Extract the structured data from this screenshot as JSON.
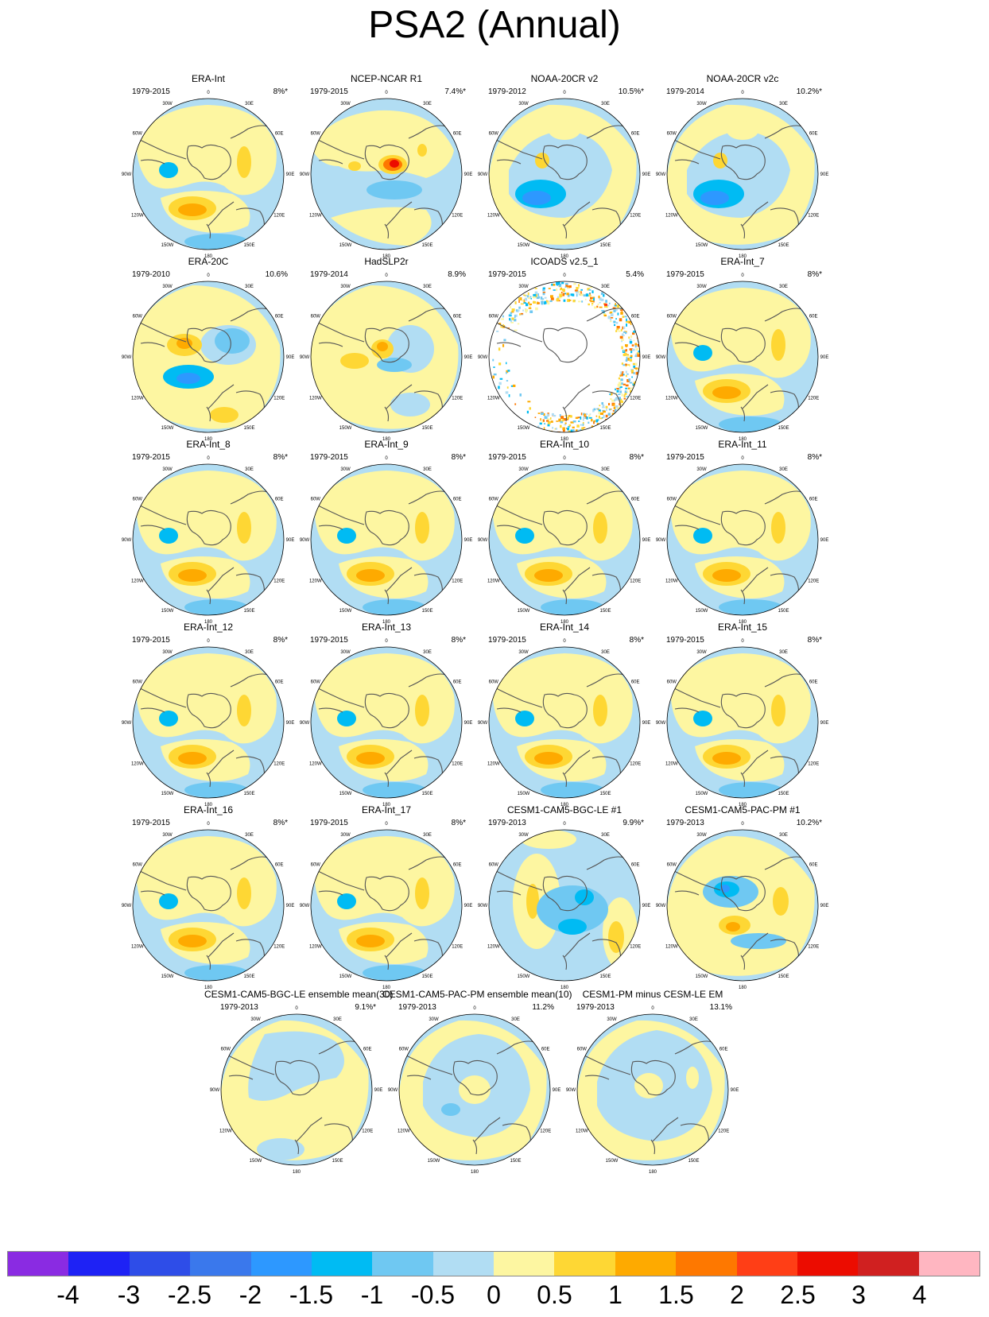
{
  "title": "PSA2 (Annual)",
  "colors": {
    "levels": [
      "#8a2be2",
      "#1e22f5",
      "#2e4de8",
      "#3a78ec",
      "#2d98ff",
      "#00bbf3",
      "#6fc8f2",
      "#b1ddf3",
      "#fdf6a1",
      "#fed734",
      "#feaa00",
      "#fe7800",
      "#ff3e16",
      "#ec0c00",
      "#d02020",
      "#ffb6c1"
    ],
    "ocean_bg": "#b1ddf3",
    "coast": "#555555"
  },
  "colorbar": {
    "labels": [
      "-4",
      "-3",
      "-2.5",
      "-2",
      "-1.5",
      "-1",
      "-0.5",
      "0",
      "0.5",
      "1",
      "1.5",
      "2",
      "2.5",
      "3",
      "4"
    ]
  },
  "map_longitude_labels": [
    "0",
    "30E",
    "60E",
    "90E",
    "120E",
    "150E",
    "180",
    "150W",
    "120W",
    "90W",
    "60W",
    "30W"
  ],
  "panels": [
    {
      "title": "ERA-Int",
      "years": "1979-2015",
      "pct": "8%*",
      "pattern": "eraint"
    },
    {
      "title": "NCEP-NCAR R1",
      "years": "1979-2015",
      "pct": "7.4%*",
      "pattern": "ncep"
    },
    {
      "title": "NOAA-20CR v2",
      "years": "1979-2012",
      "pct": "10.5%*",
      "pattern": "noaa"
    },
    {
      "title": "NOAA-20CR v2c",
      "years": "1979-2014",
      "pct": "10.2%*",
      "pattern": "noaa"
    },
    {
      "title": "ERA-20C",
      "years": "1979-2010",
      "pct": "10.6%",
      "pattern": "era20c"
    },
    {
      "title": "HadSLP2r",
      "years": "1979-2014",
      "pct": "8.9%",
      "pattern": "hadslp"
    },
    {
      "title": "ICOADS v2.5_1",
      "years": "1979-2015",
      "pct": "5.4%",
      "pattern": "icoads"
    },
    {
      "title": "ERA-Int_7",
      "years": "1979-2015",
      "pct": "8%*",
      "pattern": "eraint"
    },
    {
      "title": "ERA-Int_8",
      "years": "1979-2015",
      "pct": "8%*",
      "pattern": "eraint"
    },
    {
      "title": "ERA-Int_9",
      "years": "1979-2015",
      "pct": "8%*",
      "pattern": "eraint"
    },
    {
      "title": "ERA-Int_10",
      "years": "1979-2015",
      "pct": "8%*",
      "pattern": "eraint"
    },
    {
      "title": "ERA-Int_11",
      "years": "1979-2015",
      "pct": "8%*",
      "pattern": "eraint"
    },
    {
      "title": "ERA-Int_12",
      "years": "1979-2015",
      "pct": "8%*",
      "pattern": "eraint"
    },
    {
      "title": "ERA-Int_13",
      "years": "1979-2015",
      "pct": "8%*",
      "pattern": "eraint"
    },
    {
      "title": "ERA-Int_14",
      "years": "1979-2015",
      "pct": "8%*",
      "pattern": "eraint"
    },
    {
      "title": "ERA-Int_15",
      "years": "1979-2015",
      "pct": "8%*",
      "pattern": "eraint"
    },
    {
      "title": "ERA-Int_16",
      "years": "1979-2015",
      "pct": "8%*",
      "pattern": "eraint"
    },
    {
      "title": "ERA-Int_17",
      "years": "1979-2015",
      "pct": "8%*",
      "pattern": "eraint"
    },
    {
      "title": "CESM1-CAM5-BGC-LE #1",
      "years": "1979-2013",
      "pct": "9.9%*",
      "pattern": "bgc1"
    },
    {
      "title": "CESM1-CAM5-PAC-PM #1",
      "years": "1979-2013",
      "pct": "10.2%*",
      "pattern": "pac1"
    },
    {
      "title": "CESM1-CAM5-BGC-LE ensemble mean(30)",
      "years": "1979-2013",
      "pct": "9.1%*",
      "pattern": "bgcem"
    },
    {
      "title": "CESM1-CAM5-PAC-PM ensemble mean(10)",
      "years": "1979-2013",
      "pct": "11.2%",
      "pattern": "pacem"
    },
    {
      "title": "CESM1-PM minus CESM-LE EM",
      "years": "1979-2013",
      "pct": "13.1%",
      "pattern": "diff"
    }
  ]
}
